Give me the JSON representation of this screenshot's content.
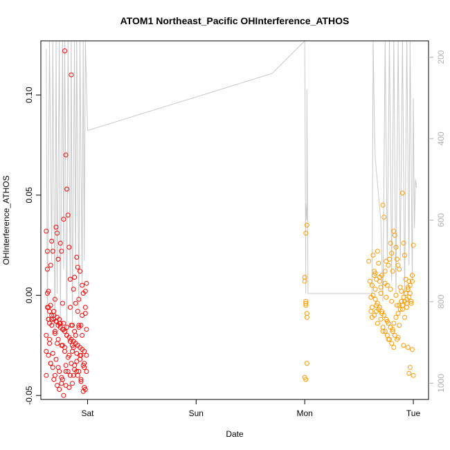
{
  "chart_data": {
    "type": "scatter",
    "title": "ATOM1 Northeast_Pacific OHInterference_ATHOS",
    "xlabel": "Date",
    "ylabel": "OHInterference_ATHOS",
    "x_ticks": [
      "Sat",
      "Sun",
      "Mon",
      "Tue"
    ],
    "x_tick_values": [
      2,
      3,
      4,
      5
    ],
    "xlim": [
      1.57,
      5.14
    ],
    "ylim": [
      -0.052,
      0.127
    ],
    "y_ticks": [
      -0.05,
      0.0,
      0.05,
      0.1
    ],
    "y_tick_labels": [
      "-0.05",
      "0.00",
      "0.05",
      "0.10"
    ],
    "right_axis": {
      "color": "#b0b0b0",
      "ticks": [
        200,
        400,
        600,
        800,
        1000
      ],
      "tick_labels": [
        "200",
        "400",
        "600",
        "800",
        "1000"
      ],
      "range": [
        1040,
        160
      ],
      "series": {
        "type": "line",
        "color": "#c8c8c8",
        "x": [
          1.62,
          1.63,
          1.65,
          1.67,
          1.68,
          1.7,
          1.71,
          1.72,
          1.74,
          1.75,
          1.77,
          1.78,
          1.79,
          1.81,
          1.82,
          1.84,
          1.85,
          1.86,
          1.88,
          1.89,
          1.9,
          1.92,
          1.93,
          1.95,
          1.96,
          1.97,
          1.98,
          2.0,
          3.7,
          4.0,
          4.01,
          4.01,
          4.02,
          4.02,
          4.03,
          4.5,
          4.62,
          4.63,
          4.64,
          4.65,
          4.7,
          4.72,
          4.74,
          4.76,
          4.78,
          4.8,
          4.82,
          4.84,
          4.86,
          4.88,
          4.9,
          4.92,
          4.94,
          4.96,
          4.97,
          4.99,
          5.0,
          5.01,
          5.02,
          5.03
        ],
        "y": [
          180,
          850,
          150,
          700,
          150,
          880,
          150,
          780,
          150,
          850,
          150,
          720,
          150,
          880,
          150,
          750,
          150,
          850,
          150,
          720,
          150,
          820,
          150,
          760,
          150,
          700,
          150,
          380,
          240,
          150,
          780,
          560,
          600,
          280,
          780,
          780,
          780,
          150,
          350,
          450,
          600,
          800,
          150,
          700,
          150,
          750,
          150,
          780,
          150,
          700,
          150,
          780,
          150,
          710,
          150,
          750,
          300,
          620,
          500,
          520
        ]
      }
    },
    "series": [
      {
        "color": "#ff0000",
        "x": [
          1.62,
          1.63,
          1.63,
          1.64,
          1.64,
          1.65,
          1.66,
          1.67,
          1.68,
          1.69,
          1.7,
          1.71,
          1.72,
          1.73,
          1.74,
          1.75,
          1.76,
          1.77,
          1.78,
          1.79,
          1.8,
          1.81,
          1.82,
          1.83,
          1.84,
          1.85,
          1.86,
          1.87,
          1.88,
          1.89,
          1.9,
          1.91,
          1.92,
          1.93,
          1.94,
          1.95,
          1.96,
          1.97,
          1.98,
          1.99,
          1.62,
          1.64,
          1.66,
          1.68,
          1.7,
          1.72,
          1.74,
          1.76,
          1.78,
          1.8,
          1.82,
          1.84,
          1.86,
          1.88,
          1.9,
          1.92,
          1.94,
          1.96,
          1.98,
          1.63,
          1.65,
          1.67,
          1.69,
          1.71,
          1.73,
          1.75,
          1.77,
          1.79,
          1.81,
          1.83,
          1.85,
          1.87,
          1.89,
          1.91,
          1.93,
          1.95,
          1.97,
          1.99,
          1.62,
          1.65,
          1.68,
          1.71,
          1.74,
          1.77,
          1.8,
          1.83,
          1.86,
          1.89,
          1.92,
          1.95,
          1.98,
          1.64,
          1.67,
          1.7,
          1.73,
          1.76,
          1.79,
          1.82,
          1.85,
          1.88,
          1.91,
          1.94,
          1.97,
          1.66,
          1.69,
          1.72,
          1.75,
          1.78,
          1.81,
          1.84,
          1.87,
          1.9,
          1.93,
          1.96,
          1.99,
          1.63,
          1.7,
          1.77,
          1.84,
          1.91,
          1.98,
          1.67,
          1.74,
          1.81,
          1.88,
          1.95,
          1.65,
          1.72,
          1.79,
          1.86,
          1.93,
          1.62,
          1.69,
          1.76,
          1.83,
          1.9,
          1.97,
          1.64,
          1.71,
          1.78,
          1.85,
          1.92,
          1.99,
          1.66,
          1.73,
          1.8,
          1.87,
          1.94
        ],
        "y": [
          0.032,
          0.022,
          0.013,
          0.002,
          -0.006,
          -0.014,
          0.015,
          0.027,
          0.022,
          -0.01,
          -0.019,
          0.034,
          0.031,
          0.018,
          -0.012,
          0.026,
          0.022,
          -0.025,
          0.038,
          0.122,
          0.07,
          0.053,
          0.04,
          0.024,
          0.008,
          0.11,
          -0.015,
          0.003,
          0.009,
          -0.004,
          0.019,
          0.014,
          -0.002,
          0.012,
          -0.015,
          0.005,
          0.001,
          -0.034,
          0.002,
          0.006,
          -0.028,
          -0.03,
          -0.034,
          -0.036,
          -0.04,
          -0.045,
          -0.047,
          -0.041,
          -0.05,
          -0.045,
          -0.038,
          -0.04,
          -0.044,
          -0.035,
          -0.033,
          -0.038,
          -0.03,
          -0.048,
          -0.047,
          -0.006,
          -0.008,
          -0.01,
          -0.012,
          -0.013,
          -0.015,
          -0.016,
          -0.017,
          -0.018,
          -0.02,
          -0.021,
          -0.022,
          -0.023,
          -0.024,
          -0.025,
          -0.026,
          -0.027,
          -0.028,
          -0.03,
          -0.02,
          -0.024,
          -0.029,
          -0.032,
          -0.038,
          -0.042,
          -0.035,
          -0.03,
          -0.025,
          -0.02,
          -0.015,
          -0.01,
          -0.006,
          -0.012,
          -0.015,
          -0.018,
          -0.022,
          -0.025,
          -0.028,
          -0.031,
          -0.034,
          -0.037,
          -0.04,
          -0.043,
          -0.046,
          -0.005,
          -0.008,
          -0.011,
          -0.014,
          -0.017,
          -0.02,
          -0.023,
          -0.026,
          -0.029,
          -0.032,
          -0.035,
          -0.038,
          0.001,
          -0.002,
          -0.004,
          -0.006,
          -0.008,
          -0.009,
          -0.012,
          -0.014,
          -0.016,
          -0.018,
          -0.02,
          -0.022,
          -0.024,
          -0.026,
          -0.028,
          -0.03,
          -0.04,
          -0.042,
          -0.044,
          -0.046,
          -0.038,
          -0.036,
          -0.012,
          -0.013,
          -0.014,
          -0.015,
          -0.016,
          -0.017,
          -0.034,
          -0.036,
          -0.038,
          -0.04,
          -0.042
        ]
      },
      {
        "color": "#ff9900",
        "x": [
          4.0,
          4.0,
          4.01,
          4.01,
          4.01,
          4.02,
          4.02,
          4.02,
          4.0,
          4.01,
          4.02,
          4.01,
          4.59,
          4.6,
          4.61,
          4.62,
          4.63,
          4.64,
          4.65,
          4.66,
          4.67,
          4.68,
          4.69,
          4.7,
          4.71,
          4.72,
          4.73,
          4.74,
          4.75,
          4.76,
          4.77,
          4.78,
          4.79,
          4.8,
          4.81,
          4.82,
          4.83,
          4.84,
          4.85,
          4.86,
          4.87,
          4.88,
          4.89,
          4.9,
          4.91,
          4.92,
          4.93,
          4.94,
          4.95,
          4.96,
          4.97,
          4.98,
          4.99,
          5.0,
          4.62,
          4.64,
          4.66,
          4.68,
          4.7,
          4.72,
          4.74,
          4.76,
          4.78,
          4.8,
          4.82,
          4.84,
          4.86,
          4.88,
          4.9,
          4.92,
          4.94,
          4.96,
          4.98,
          4.63,
          4.65,
          4.67,
          4.69,
          4.71,
          4.73,
          4.75,
          4.77,
          4.79,
          4.81,
          4.83,
          4.85,
          4.87,
          4.89,
          4.91,
          4.93,
          4.95,
          4.97,
          4.99,
          4.61,
          4.66,
          4.71,
          4.76,
          4.81,
          4.86,
          4.91,
          4.96,
          4.64,
          4.69,
          4.74,
          4.79,
          4.84,
          4.89,
          4.94,
          4.99,
          4.62,
          4.67,
          4.72,
          4.77,
          4.82,
          4.87,
          4.92,
          4.97,
          4.65,
          4.7,
          4.75,
          4.8,
          4.85,
          4.9,
          4.95,
          5.0
        ],
        "y": [
          0.009,
          0.007,
          -0.004,
          -0.005,
          -0.003,
          -0.011,
          -0.009,
          0.035,
          -0.041,
          -0.042,
          -0.034,
          0.031,
          0.017,
          0.007,
          -0.008,
          0.005,
          0.02,
          0.01,
          0.011,
          0.008,
          0.022,
          0.016,
          0.007,
          0.004,
          0.01,
          0.045,
          0.039,
          0.012,
          0.017,
          0.005,
          0.015,
          0.018,
          0.026,
          0.021,
          0.012,
          0.032,
          0.03,
          0.024,
          0.018,
          0.015,
          0.013,
          0.004,
          0.002,
          0.051,
          0.026,
          0.02,
          0.008,
          -0.004,
          0.004,
          0.007,
          0.001,
          -0.003,
          0.01,
          0.025,
          -0.011,
          -0.01,
          -0.008,
          -0.007,
          -0.012,
          -0.016,
          -0.018,
          -0.02,
          -0.022,
          -0.024,
          -0.014,
          -0.011,
          -0.009,
          -0.007,
          -0.005,
          -0.003,
          -0.002,
          -0.001,
          -0.004,
          0.0,
          -0.002,
          -0.004,
          -0.006,
          -0.008,
          -0.01,
          -0.012,
          -0.014,
          -0.016,
          -0.018,
          -0.02,
          -0.022,
          -0.005,
          -0.003,
          -0.001,
          0.001,
          0.003,
          0.005,
          0.007,
          -0.001,
          -0.005,
          -0.009,
          -0.013,
          -0.017,
          -0.021,
          -0.025,
          -0.039,
          0.012,
          0.009,
          0.006,
          0.003,
          0.0,
          -0.003,
          -0.006,
          -0.027,
          -0.006,
          -0.014,
          -0.018,
          -0.022,
          -0.026,
          -0.015,
          -0.011,
          -0.036,
          0.003,
          0.001,
          -0.001,
          -0.003,
          -0.005,
          -0.007,
          -0.026,
          -0.04
        ]
      }
    ]
  }
}
